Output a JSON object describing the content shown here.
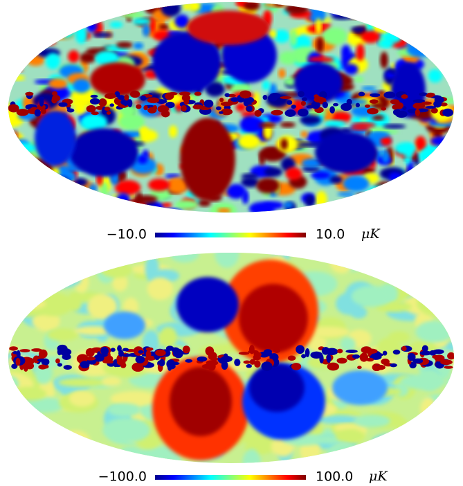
{
  "maps": [
    {
      "colorbar": {
        "min_label": "−10.0",
        "max_label": "10.0",
        "unit": "μK"
      }
    },
    {
      "colorbar": {
        "min_label": "−100.0",
        "max_label": "100.0",
        "unit": "μK"
      }
    }
  ]
}
